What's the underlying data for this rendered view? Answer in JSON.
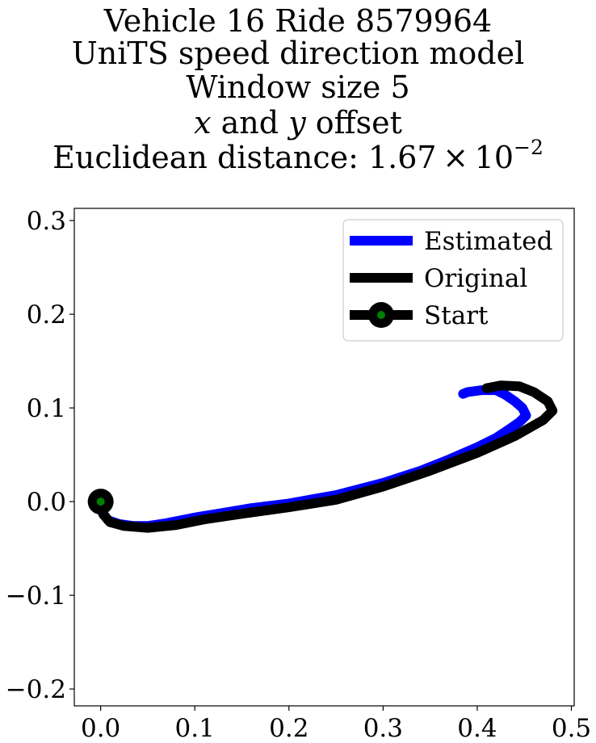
{
  "chart_data": {
    "type": "line",
    "title_lines": [
      "Vehicle 16 Ride 8579964",
      "UniTS speed direction model",
      "Window size 5"
    ],
    "title_offset_line": {
      "x_var": "x",
      "and_text": "and",
      "y_var": "y",
      "offset_text": "offset"
    },
    "title_distance_line": {
      "prefix": "Euclidean distance: ",
      "mantissa": "1.67",
      "times": "×",
      "base": "10",
      "exponent": "−2"
    },
    "xlabel": "",
    "ylabel": "",
    "xlim": [
      -0.028,
      0.503
    ],
    "ylim": [
      -0.218,
      0.313
    ],
    "x_ticks": [
      0.0,
      0.1,
      0.2,
      0.3,
      0.4,
      0.5
    ],
    "x_tick_labels": [
      "0.0",
      "0.1",
      "0.2",
      "0.3",
      "0.4",
      "0.5"
    ],
    "y_ticks": [
      -0.2,
      -0.1,
      0.0,
      0.1,
      0.2,
      0.3
    ],
    "y_tick_labels": [
      "−0.2",
      "−0.1",
      "0.0",
      "0.1",
      "0.2",
      "0.3"
    ],
    "grid": false,
    "legend_position": "top-right",
    "series": [
      {
        "name": "Estimated",
        "color": "#0000ff",
        "x": [
          0.0,
          0.002,
          0.008,
          0.02,
          0.035,
          0.05,
          0.07,
          0.1,
          0.13,
          0.16,
          0.2,
          0.25,
          0.3,
          0.34,
          0.37,
          0.4,
          0.42,
          0.435,
          0.445,
          0.452,
          0.448,
          0.44,
          0.43,
          0.42,
          0.405,
          0.39,
          0.385
        ],
        "y": [
          0.0,
          -0.012,
          -0.02,
          -0.024,
          -0.026,
          -0.026,
          -0.023,
          -0.017,
          -0.012,
          -0.007,
          -0.002,
          0.007,
          0.02,
          0.033,
          0.045,
          0.058,
          0.068,
          0.078,
          0.085,
          0.092,
          0.1,
          0.107,
          0.114,
          0.119,
          0.119,
          0.117,
          0.115
        ]
      },
      {
        "name": "Original",
        "color": "#000000",
        "x": [
          0.0,
          0.003,
          0.01,
          0.025,
          0.05,
          0.08,
          0.11,
          0.15,
          0.2,
          0.25,
          0.3,
          0.35,
          0.4,
          0.44,
          0.47,
          0.48,
          0.475,
          0.46,
          0.445,
          0.425,
          0.41
        ],
        "y": [
          0.0,
          -0.014,
          -0.022,
          -0.026,
          -0.028,
          -0.025,
          -0.019,
          -0.013,
          -0.006,
          0.002,
          0.016,
          0.033,
          0.052,
          0.07,
          0.087,
          0.097,
          0.107,
          0.117,
          0.123,
          0.124,
          0.121
        ]
      }
    ],
    "start_point": {
      "name": "Start",
      "x": 0.0,
      "y": 0.0,
      "outer_color": "#000000",
      "inner_color": "#008000"
    }
  }
}
